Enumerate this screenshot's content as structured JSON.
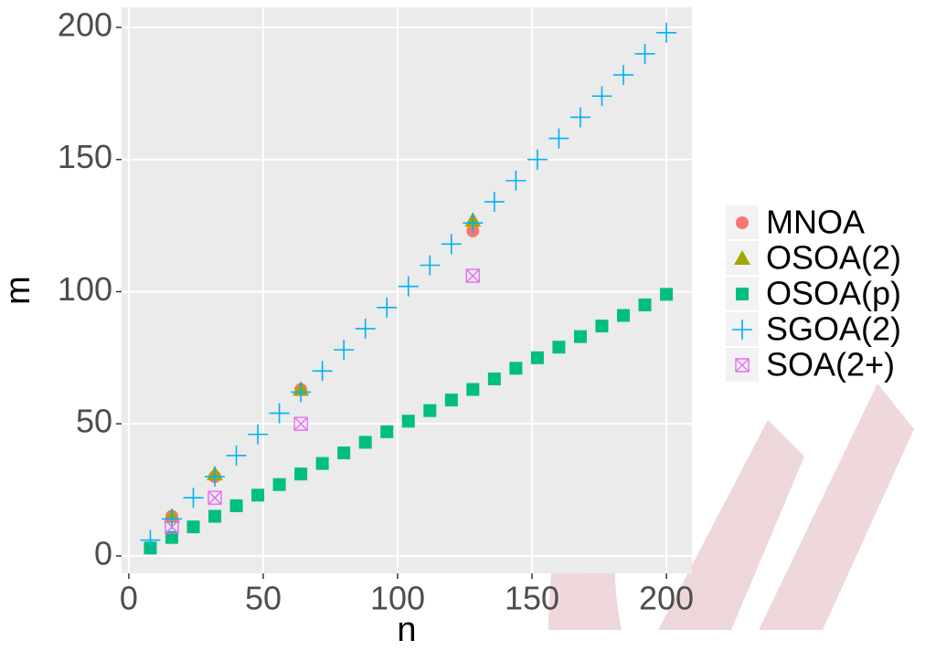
{
  "chart_data": {
    "type": "scatter",
    "x_label": "n",
    "y_label": "m",
    "xlim": [
      -2.7,
      209.5
    ],
    "ylim": [
      -6.6,
      207.6
    ],
    "xticks": [
      0,
      50,
      100,
      150,
      200
    ],
    "yticks": [
      0,
      50,
      100,
      150,
      200
    ],
    "grid": true,
    "series": [
      {
        "name": "MNOA",
        "color": "#F8766D",
        "shape": "circle",
        "x": [
          16,
          32,
          64,
          128
        ],
        "values": [
          15,
          30,
          63,
          123
        ]
      },
      {
        "name": "OSOA(2)",
        "color": "#A3A500",
        "shape": "triangle",
        "x": [
          16,
          32,
          64,
          128
        ],
        "values": [
          15,
          31,
          63,
          127
        ]
      },
      {
        "name": "OSOA(p)",
        "color": "#00BF7D",
        "shape": "square",
        "x": [
          8,
          16,
          24,
          32,
          40,
          48,
          56,
          64,
          72,
          80,
          88,
          96,
          104,
          112,
          120,
          128,
          136,
          144,
          152,
          160,
          168,
          176,
          184,
          192,
          200
        ],
        "values": [
          3,
          7,
          11,
          15,
          19,
          23,
          27,
          31,
          35,
          39,
          43,
          47,
          51,
          55,
          59,
          63,
          67,
          71,
          75,
          79,
          83,
          87,
          91,
          95,
          99
        ]
      },
      {
        "name": "SGOA(2)",
        "color": "#00B0F6",
        "shape": "plus",
        "x": [
          8,
          16,
          24,
          32,
          40,
          48,
          56,
          64,
          72,
          80,
          88,
          96,
          104,
          112,
          120,
          128,
          136,
          144,
          152,
          160,
          168,
          176,
          184,
          192,
          200
        ],
        "values": [
          6,
          14,
          22,
          30,
          38,
          46,
          54,
          62,
          70,
          78,
          86,
          94,
          102,
          110,
          118,
          126,
          134,
          142,
          150,
          158,
          166,
          174,
          182,
          190,
          198
        ]
      },
      {
        "name": "SOA(2+)",
        "color": "#E76BF3",
        "shape": "boxx",
        "x": [
          16,
          32,
          64,
          128
        ],
        "values": [
          11,
          22,
          50,
          106
        ]
      }
    ]
  }
}
